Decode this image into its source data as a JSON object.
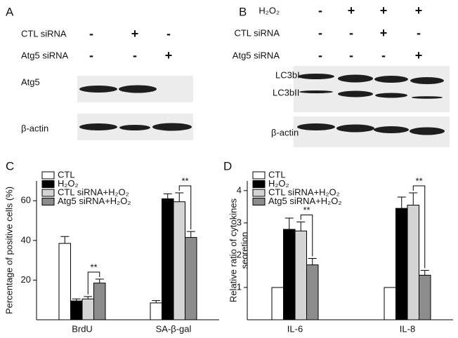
{
  "panel_a": {
    "letter": "A",
    "rows": [
      {
        "label": "CTL siRNA",
        "signs": [
          "-",
          "+",
          "-"
        ]
      },
      {
        "label": "Atg5 siRNA",
        "signs": [
          "-",
          "-",
          "+"
        ]
      }
    ],
    "blots": [
      "Atg5",
      "β-actin"
    ]
  },
  "panel_b": {
    "letter": "B",
    "rows": [
      {
        "label": "H₂O₂",
        "signs": [
          "-",
          "+",
          "+",
          "+"
        ]
      },
      {
        "label": "CTL siRNA",
        "signs": [
          "-",
          "-",
          "+",
          "-"
        ]
      },
      {
        "label": "Atg5 siRNA",
        "signs": [
          "-",
          "-",
          "-",
          "+"
        ]
      }
    ],
    "blots": [
      "LC3bI",
      "LC3bII",
      "β-actin"
    ]
  },
  "chart_data": [
    {
      "type": "bar",
      "panel": "C",
      "ylabel": [
        "Percentage of positive cells (%)"
      ],
      "categories": [
        "BrdU",
        "SA-β-gal"
      ],
      "series": [
        {
          "name": "CTL",
          "color": "#ffffff",
          "values": [
            38.5,
            8.5
          ],
          "errors": [
            3.5,
            1.2
          ]
        },
        {
          "name": "H₂O₂",
          "color": "#000000",
          "values": [
            9.5,
            61
          ],
          "errors": [
            1,
            2.5
          ]
        },
        {
          "name": "CTL siRNA+H₂O₂",
          "color": "#d4d4d4",
          "values": [
            10.5,
            59.5
          ],
          "errors": [
            1.2,
            4.5
          ]
        },
        {
          "name": "Atg5 siRNA+H₂O₂",
          "color": "#8c8c8c",
          "values": [
            18.5,
            41.5
          ],
          "errors": [
            2,
            3
          ]
        }
      ],
      "annotations": [
        "**",
        "**"
      ],
      "ylim": [
        0,
        70
      ],
      "yticks": [
        20,
        40,
        60
      ]
    },
    {
      "type": "bar",
      "panel": "D",
      "ylabel": [
        "Relative ratio of cytokines",
        "secretion"
      ],
      "categories": [
        "IL-6",
        "IL-8"
      ],
      "series": [
        {
          "name": "CTL",
          "color": "#ffffff",
          "values": [
            1,
            1
          ],
          "errors": [
            null,
            null
          ]
        },
        {
          "name": "H₂O₂",
          "color": "#000000",
          "values": [
            2.8,
            3.45
          ],
          "errors": [
            0.35,
            0.35
          ]
        },
        {
          "name": "CTL siRNA+H₂O₂",
          "color": "#d4d4d4",
          "values": [
            2.75,
            3.55
          ],
          "errors": [
            0.28,
            0.38
          ]
        },
        {
          "name": "Atg5 siRNA+H₂O₂",
          "color": "#8c8c8c",
          "values": [
            1.7,
            1.38
          ],
          "errors": [
            0.2,
            0.15
          ]
        }
      ],
      "annotations": [
        "**",
        "**"
      ],
      "ylim": [
        0,
        4.3
      ],
      "yticks": [
        1,
        2,
        3,
        4
      ]
    }
  ]
}
